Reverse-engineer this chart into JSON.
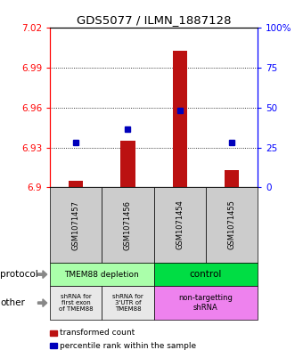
{
  "title": "GDS5077 / ILMN_1887128",
  "samples": [
    "GSM1071457",
    "GSM1071456",
    "GSM1071454",
    "GSM1071455"
  ],
  "red_values": [
    6.905,
    6.935,
    7.003,
    6.913
  ],
  "blue_values": [
    6.934,
    6.944,
    6.958,
    6.934
  ],
  "ylim": [
    6.9,
    7.02
  ],
  "yticks_left": [
    6.9,
    6.93,
    6.96,
    6.99,
    7.02
  ],
  "yticks_right": [
    0,
    25,
    50,
    75,
    100
  ],
  "ytick_left_labels": [
    "6.9",
    "6.93",
    "6.96",
    "6.99",
    "7.02"
  ],
  "ytick_right_labels": [
    "0",
    "25",
    "50",
    "75",
    "100%"
  ],
  "gridlines": [
    6.93,
    6.96,
    6.99
  ],
  "protocol_labels": [
    "TMEM88 depletion",
    "control"
  ],
  "protocol_color_left": "#AAFFAA",
  "protocol_color_right": "#00DD44",
  "other_labels_left0": "shRNA for\nfirst exon\nof TMEM88",
  "other_labels_left1": "shRNA for\n3'UTR of\nTMEM88",
  "other_labels_right": "non-targetting\nshRNA",
  "other_color_left": "#E8E8E8",
  "other_color_right": "#EE82EE",
  "legend_red": "transformed count",
  "legend_blue": "percentile rank within the sample",
  "bar_color": "#BB1111",
  "dot_color": "#0000BB",
  "label_protocol": "protocol",
  "label_other": "other",
  "sample_box_color": "#CCCCCC"
}
